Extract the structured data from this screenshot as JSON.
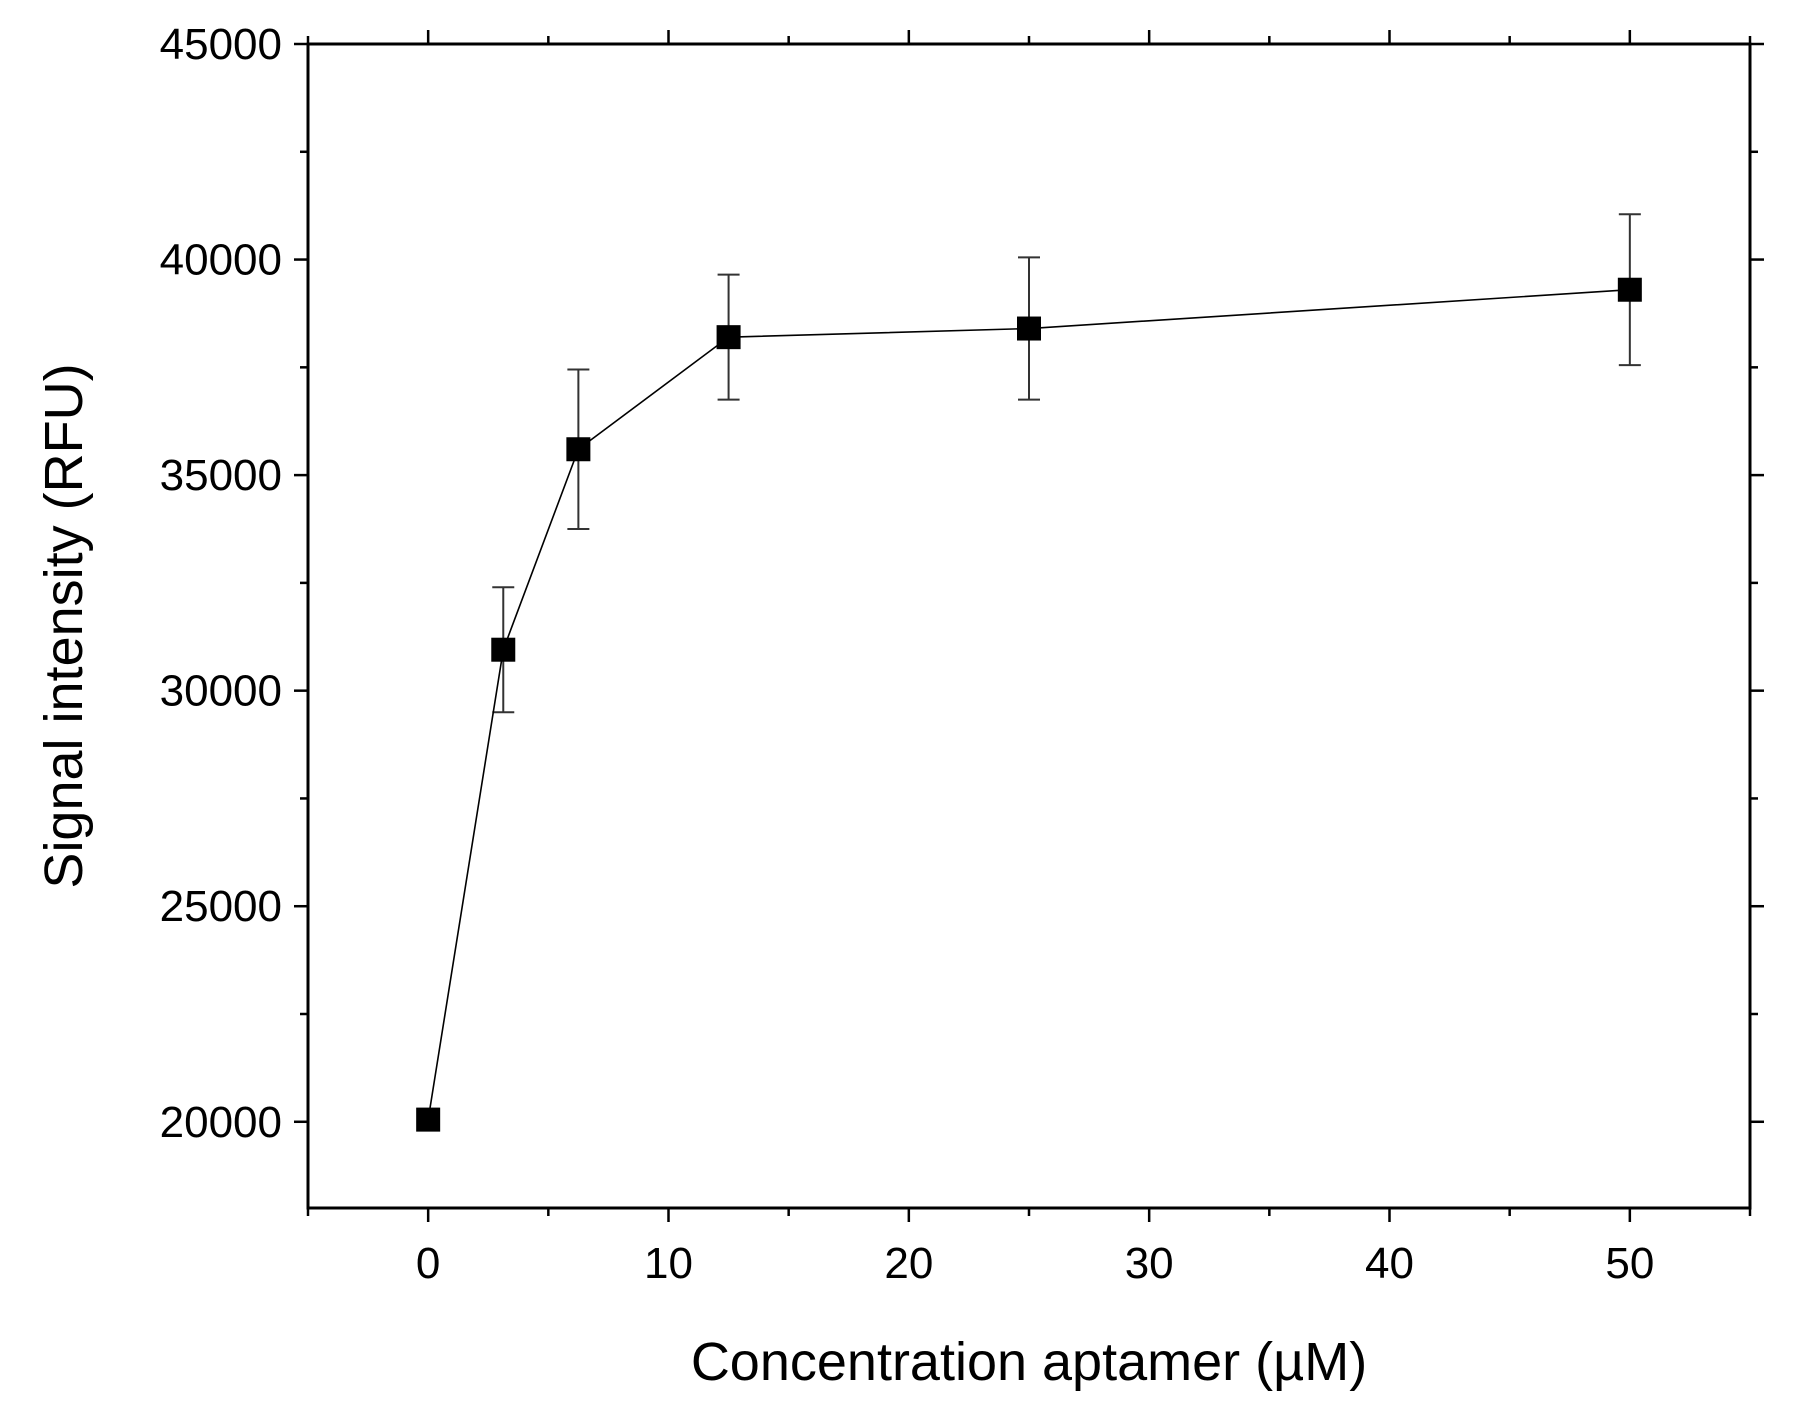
{
  "chart_data": {
    "type": "line",
    "title": "",
    "xlabel": "Concentration aptamer (µM)",
    "ylabel": "Signal intensity (RFU)",
    "xlim": [
      -5,
      55
    ],
    "ylim": [
      18000,
      45000
    ],
    "x_ticks": [
      0,
      10,
      20,
      30,
      40,
      50
    ],
    "x_minor_ticks": [
      -5,
      5,
      15,
      25,
      35,
      45,
      55
    ],
    "y_ticks": [
      20000,
      25000,
      30000,
      35000,
      40000,
      45000
    ],
    "y_minor_ticks": [
      22500,
      27500,
      32500,
      37500,
      42500
    ],
    "grid": false,
    "marker": "square",
    "series": [
      {
        "name": "Signal intensity",
        "x": [
          0,
          3.125,
          6.25,
          12.5,
          25,
          50
        ],
        "y": [
          20050,
          30950,
          35600,
          38200,
          38400,
          39300
        ],
        "error": [
          250,
          1450,
          1850,
          1450,
          1650,
          1750
        ]
      }
    ]
  }
}
